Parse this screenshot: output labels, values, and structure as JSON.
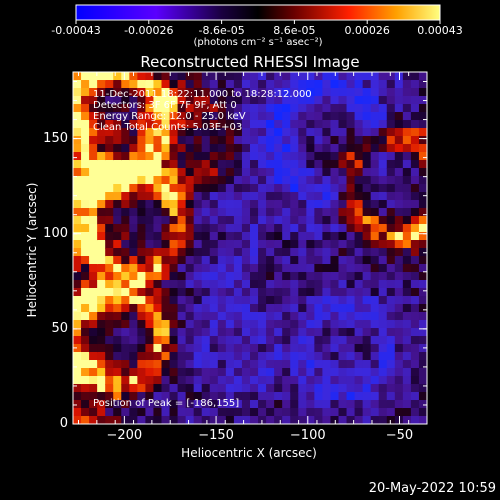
{
  "chart_data": {
    "type": "heatmap",
    "title": "Reconstructed RHESSI Image",
    "xlabel": "Heliocentric X (arcsec)",
    "ylabel": "Heliocentric Y (arcsec)",
    "xlim": [
      -228,
      -35
    ],
    "ylim": [
      0,
      185
    ],
    "x_ticks": [
      -200,
      -150,
      -100,
      -50
    ],
    "y_ticks": [
      0,
      50,
      100,
      150
    ],
    "colorbar": {
      "range": [
        -0.00043,
        0.00043
      ],
      "ticks": [
        "-0.00043",
        "-0.00026",
        "-8.6e-05",
        "8.6e-05",
        "0.00026",
        "0.00043"
      ],
      "units": "(photons cm⁻² s⁻¹ asec⁻²)"
    },
    "annotations": [
      "11-Dec-2011 18:22:11.000 to 18:28:12.000",
      "Detectors: 3F 6F 7F 9F, Att 0",
      "Energy Range: 12.0 - 25.0 keV",
      "Clean    Total Counts: 5.03E+03"
    ],
    "peak_text": "Position of Peak = [-186,155]",
    "peak": [
      -186,
      155
    ]
  },
  "footer": {
    "date": "20-May-2022 10:59"
  }
}
